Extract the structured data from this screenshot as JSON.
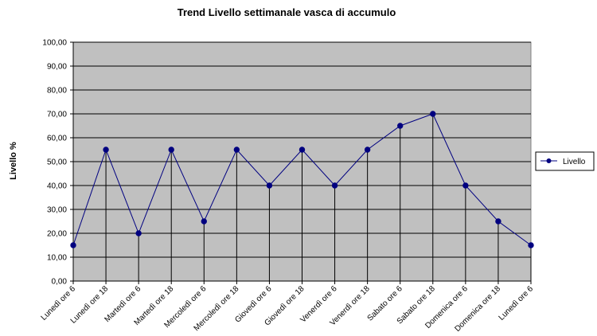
{
  "chart_data": {
    "type": "line",
    "title": "Trend  Livello settimanale vasca di accumulo",
    "xlabel": "",
    "ylabel": "Livello %",
    "categories": [
      "Lunedì ore 6",
      "Lunedì ore 18",
      "Martedì ore 6",
      "Martedì ore 18",
      "Mercoledì ore 6",
      "Mercoledì ore 18",
      "Giovedì ore 6",
      "Giovedì ore 18",
      "Venerdì ore 6",
      "Venerdì ore 18",
      "Sabato ore 6",
      "Sabato ore 18",
      "Domenica ore 6",
      "Domenica ore 18",
      "Lunedì ore 6"
    ],
    "series": [
      {
        "name": "Livello",
        "values": [
          15,
          55,
          20,
          55,
          25,
          55,
          40,
          55,
          40,
          55,
          65,
          70,
          40,
          25,
          15
        ]
      }
    ],
    "ylim": [
      0,
      100
    ],
    "yticks": [
      "0,00",
      "10,00",
      "20,00",
      "30,00",
      "40,00",
      "50,00",
      "60,00",
      "70,00",
      "80,00",
      "90,00",
      "100,00"
    ],
    "grid": true,
    "drop_lines": true,
    "legend_position": "right",
    "colors": {
      "plot_background": "#c0c0c0",
      "line": "#000080",
      "marker": "#000080",
      "grid": "#000000"
    }
  }
}
